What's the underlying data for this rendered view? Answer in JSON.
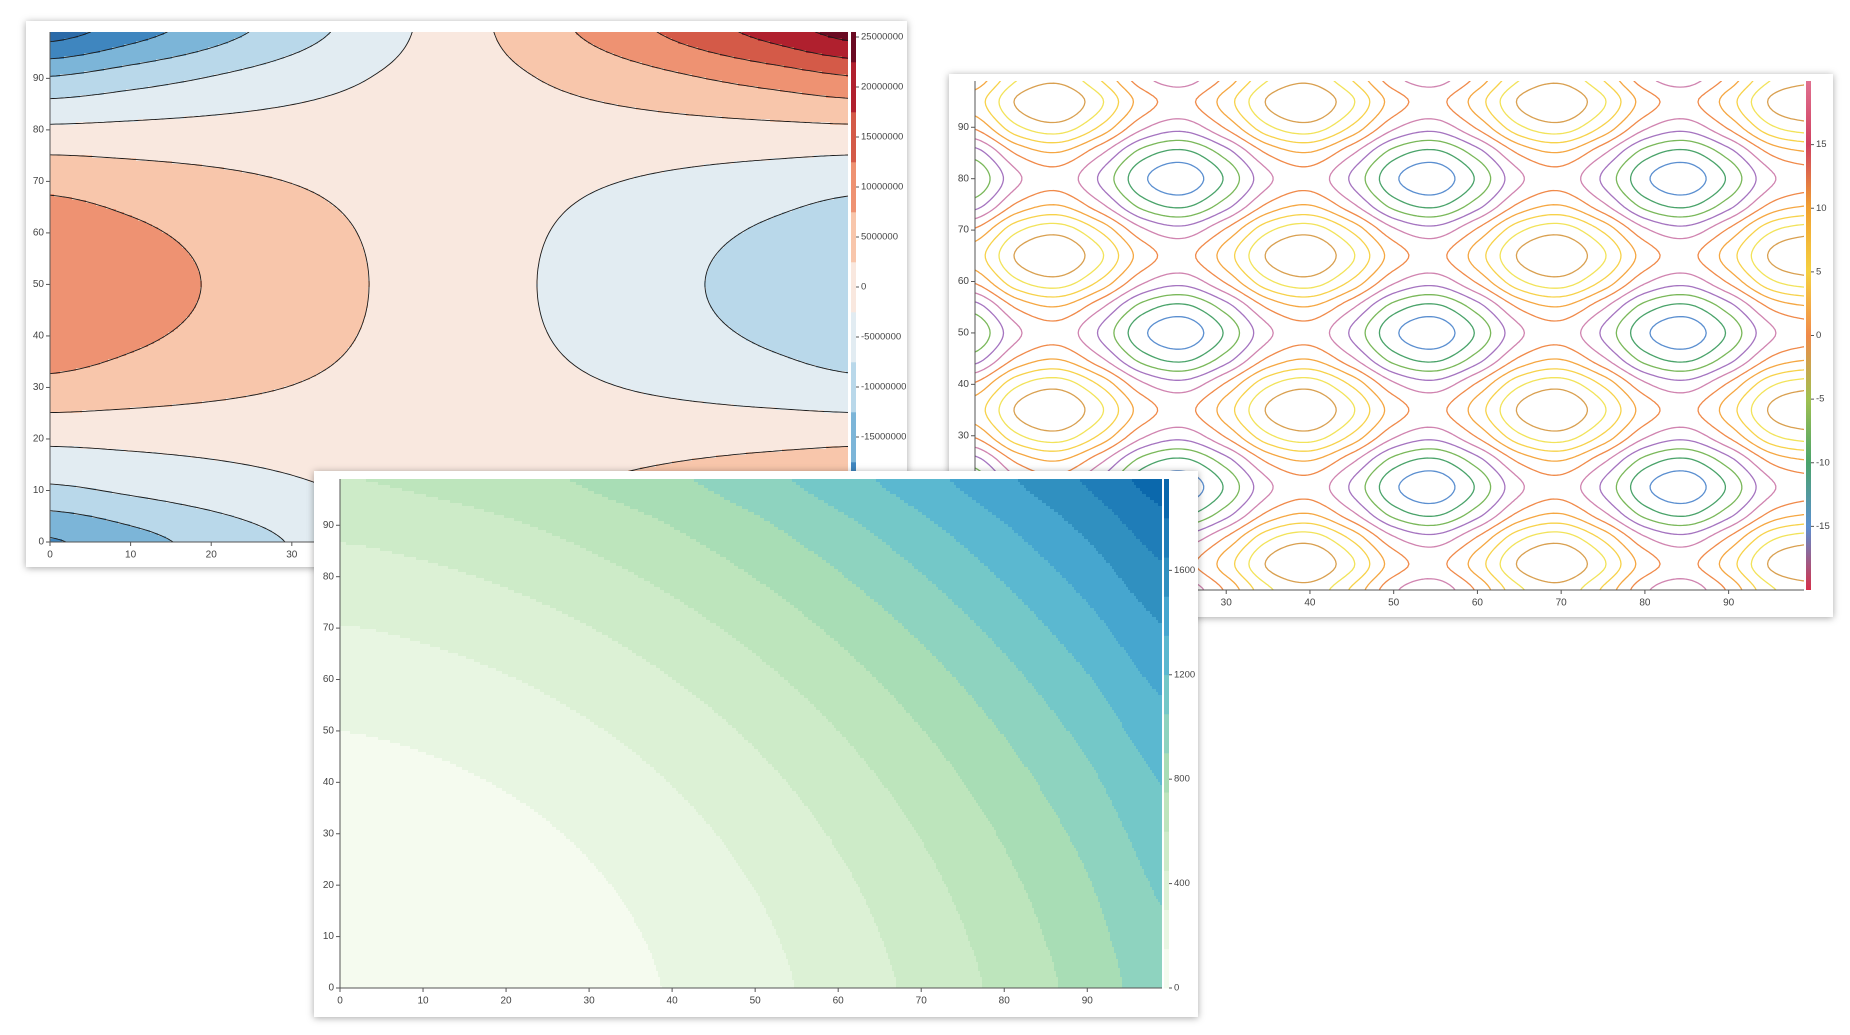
{
  "chart_data": [
    {
      "type": "filled_contour",
      "xlim": [
        0,
        99
      ],
      "ylim": [
        0,
        99
      ],
      "xticks": [
        0,
        10,
        20,
        30
      ],
      "yticks": [
        0,
        10,
        20,
        30,
        40,
        50,
        60,
        70,
        80,
        90
      ],
      "zx": [
        0,
        10,
        20,
        30,
        40,
        50,
        60,
        70,
        80,
        90,
        100
      ],
      "zy": [
        0,
        10,
        20,
        30,
        40,
        50,
        60,
        70,
        80,
        90,
        100
      ],
      "z": [
        [
          -18000000,
          -14400000,
          -10800000,
          -7200000,
          -3600000,
          0,
          3600000,
          7200000,
          10800000,
          14400000,
          18000000
        ],
        [
          -8500000,
          -6800000,
          -5100000,
          -3400000,
          -1700000,
          0,
          1700000,
          3400000,
          5100000,
          6800000,
          8500000
        ],
        [
          -1500000,
          -1200000,
          -900000,
          -600000,
          -300000,
          0,
          300000,
          600000,
          900000,
          1200000,
          1500000
        ],
        [
          6000000,
          4800000,
          3600000,
          2400000,
          1200000,
          0,
          -1200000,
          -2400000,
          -3600000,
          -4800000,
          -6000000
        ],
        [
          10500000,
          8400000,
          6300000,
          4200000,
          2100000,
          0,
          -2100000,
          -4200000,
          -6300000,
          -8400000,
          -10500000
        ],
        [
          12000000,
          9600000,
          7200000,
          4800000,
          2400000,
          0,
          -2400000,
          -4800000,
          -7200000,
          -9600000,
          -12000000
        ],
        [
          10500000,
          8400000,
          6300000,
          4200000,
          2100000,
          0,
          -2100000,
          -4200000,
          -6300000,
          -8400000,
          -10500000
        ],
        [
          6000000,
          4800000,
          3600000,
          2400000,
          1200000,
          0,
          -1200000,
          -2400000,
          -3600000,
          -4800000,
          -6000000
        ],
        [
          -1500000,
          -1200000,
          -900000,
          -600000,
          -300000,
          0,
          300000,
          600000,
          900000,
          1200000,
          1500000
        ],
        [
          -12000000,
          -9600000,
          -7200000,
          -4800000,
          -2400000,
          0,
          2400000,
          4800000,
          7200000,
          9600000,
          12000000
        ],
        [
          -25500000,
          -20400000,
          -15300000,
          -10200000,
          -5100000,
          0,
          5100000,
          10200000,
          15300000,
          20400000,
          25500000
        ]
      ],
      "levels": [
        -27500000,
        -22500000,
        -17500000,
        -12500000,
        -7500000,
        -2500000,
        2500000,
        7500000,
        12500000,
        17500000,
        22500000,
        27500000
      ],
      "colors": [
        "#2b6aa8",
        "#3f86bf",
        "#7cb5d8",
        "#b9d8ea",
        "#e2ecf2",
        "#f9e8df",
        "#f8c6ab",
        "#ee9272",
        "#d45a48",
        "#b0202e",
        "#6a0a22"
      ],
      "line_color": "#1a1a1a",
      "zlim": [
        -25500000,
        25500000
      ],
      "zticks": [
        25000000,
        20000000,
        15000000,
        10000000,
        5000000,
        0,
        -5000000,
        -10000000,
        -15000000
      ]
    },
    {
      "type": "contour",
      "xlim": [
        0,
        99
      ],
      "ylim": [
        0,
        99
      ],
      "xticks": [
        30,
        40,
        50,
        60,
        70,
        80,
        90
      ],
      "yticks": [
        30,
        40,
        50,
        60,
        70,
        80,
        90
      ],
      "zx": [
        0,
        5,
        10,
        15,
        20,
        25,
        30,
        35,
        40,
        45,
        50,
        55,
        60,
        65,
        70,
        75,
        80,
        85,
        90,
        95,
        100
      ],
      "zy": [
        0,
        5,
        10,
        15,
        20,
        25,
        30,
        35,
        40,
        45,
        50,
        55,
        60,
        65,
        70,
        75,
        80,
        85,
        90,
        95,
        100
      ],
      "z": [
        [
          1.5,
          9.4,
          11.8,
          6.5,
          -1.4,
          -3.8,
          1.5,
          9.4,
          11.8,
          6.5,
          -1.4,
          -3.8,
          1.5,
          9.4,
          11.8,
          6.5,
          -1.4,
          -3.8,
          1.5,
          9.4,
          11.8
        ],
        [
          5.5,
          13.4,
          15.8,
          10.5,
          2.6,
          0.2,
          5.5,
          13.4,
          15.8,
          10.5,
          2.6,
          0.2,
          5.5,
          13.4,
          15.8,
          10.5,
          2.6,
          0.2,
          5.5,
          13.4,
          15.8
        ],
        [
          1.5,
          9.4,
          11.8,
          6.5,
          -1.4,
          -3.8,
          1.5,
          9.4,
          11.8,
          6.5,
          -1.4,
          -3.8,
          1.5,
          9.4,
          11.8,
          6.5,
          -1.4,
          -3.8,
          1.5,
          9.4,
          11.8
        ],
        [
          -6.5,
          1.4,
          3.8,
          -1.5,
          -9.4,
          -11.8,
          -6.5,
          1.4,
          3.8,
          -1.5,
          -9.4,
          -11.8,
          -6.5,
          1.4,
          3.8,
          -1.5,
          -9.4,
          -11.8,
          -6.5,
          1.4,
          3.8
        ],
        [
          -10.5,
          -2.6,
          -0.2,
          -5.5,
          -13.4,
          -15.8,
          -10.5,
          -2.6,
          -0.2,
          -5.5,
          -13.4,
          -15.8,
          -10.5,
          -2.6,
          -0.2,
          -5.5,
          -13.4,
          -15.8,
          -10.5,
          -2.6,
          -0.2
        ],
        [
          -6.5,
          1.4,
          3.8,
          -1.5,
          -9.4,
          -11.8,
          -6.5,
          1.4,
          3.8,
          -1.5,
          -9.4,
          -11.8,
          -6.5,
          1.4,
          3.8,
          -1.5,
          -9.4,
          -11.8,
          -6.5,
          1.4,
          3.8
        ],
        [
          1.5,
          9.4,
          11.8,
          6.5,
          -1.4,
          -3.8,
          1.5,
          9.4,
          11.8,
          6.5,
          -1.4,
          -3.8,
          1.5,
          9.4,
          11.8,
          6.5,
          -1.4,
          -3.8,
          1.5,
          9.4,
          11.8
        ],
        [
          5.5,
          13.4,
          15.8,
          10.5,
          2.6,
          0.2,
          5.5,
          13.4,
          15.8,
          10.5,
          2.6,
          0.2,
          5.5,
          13.4,
          15.8,
          10.5,
          2.6,
          0.2,
          5.5,
          13.4,
          15.8
        ],
        [
          1.5,
          9.4,
          11.8,
          6.5,
          -1.4,
          -3.8,
          1.5,
          9.4,
          11.8,
          6.5,
          -1.4,
          -3.8,
          1.5,
          9.4,
          11.8,
          6.5,
          -1.4,
          -3.8,
          1.5,
          9.4,
          11.8
        ],
        [
          -6.5,
          1.4,
          3.8,
          -1.5,
          -9.4,
          -11.8,
          -6.5,
          1.4,
          3.8,
          -1.5,
          -9.4,
          -11.8,
          -6.5,
          1.4,
          3.8,
          -1.5,
          -9.4,
          -11.8,
          -6.5,
          1.4,
          3.8
        ],
        [
          -10.5,
          -2.6,
          -0.2,
          -5.5,
          -13.4,
          -15.8,
          -10.5,
          -2.6,
          -0.2,
          -5.5,
          -13.4,
          -15.8,
          -10.5,
          -2.6,
          -0.2,
          -5.5,
          -13.4,
          -15.8,
          -10.5,
          -2.6,
          -0.2
        ],
        [
          -6.5,
          1.4,
          3.8,
          -1.5,
          -9.4,
          -11.8,
          -6.5,
          1.4,
          3.8,
          -1.5,
          -9.4,
          -11.8,
          -6.5,
          1.4,
          3.8,
          -1.5,
          -9.4,
          -11.8,
          -6.5,
          1.4,
          3.8
        ],
        [
          1.5,
          9.4,
          11.8,
          6.5,
          -1.4,
          -3.8,
          1.5,
          9.4,
          11.8,
          6.5,
          -1.4,
          -3.8,
          1.5,
          9.4,
          11.8,
          6.5,
          -1.4,
          -3.8,
          1.5,
          9.4,
          11.8
        ],
        [
          5.5,
          13.4,
          15.8,
          10.5,
          2.6,
          0.2,
          5.5,
          13.4,
          15.8,
          10.5,
          2.6,
          0.2,
          5.5,
          13.4,
          15.8,
          10.5,
          2.6,
          0.2,
          5.5,
          13.4,
          15.8
        ],
        [
          1.5,
          9.4,
          11.8,
          6.5,
          -1.4,
          -3.8,
          1.5,
          9.4,
          11.8,
          6.5,
          -1.4,
          -3.8,
          1.5,
          9.4,
          11.8,
          6.5,
          -1.4,
          -3.8,
          1.5,
          9.4,
          11.8
        ],
        [
          -6.5,
          1.4,
          3.8,
          -1.5,
          -9.4,
          -11.8,
          -6.5,
          1.4,
          3.8,
          -1.5,
          -9.4,
          -11.8,
          -6.5,
          1.4,
          3.8,
          -1.5,
          -9.4,
          -11.8,
          -6.5,
          1.4,
          3.8
        ],
        [
          -10.5,
          -2.6,
          -0.2,
          -5.5,
          -13.4,
          -15.8,
          -10.5,
          -2.6,
          -0.2,
          -5.5,
          -13.4,
          -15.8,
          -10.5,
          -2.6,
          -0.2,
          -5.5,
          -13.4,
          -15.8,
          -10.5,
          -2.6,
          -0.2
        ],
        [
          -6.5,
          1.4,
          3.8,
          -1.5,
          -9.4,
          -11.8,
          -6.5,
          1.4,
          3.8,
          -1.5,
          -9.4,
          -11.8,
          -6.5,
          1.4,
          3.8,
          -1.5,
          -9.4,
          -11.8,
          -6.5,
          1.4,
          3.8
        ],
        [
          1.5,
          9.4,
          11.8,
          6.5,
          -1.4,
          -3.8,
          1.5,
          9.4,
          11.8,
          6.5,
          -1.4,
          -3.8,
          1.5,
          9.4,
          11.8,
          6.5,
          -1.4,
          -3.8,
          1.5,
          9.4,
          11.8
        ],
        [
          5.5,
          13.4,
          15.8,
          10.5,
          2.6,
          0.2,
          5.5,
          13.4,
          15.8,
          10.5,
          2.6,
          0.2,
          5.5,
          13.4,
          15.8,
          10.5,
          2.6,
          0.2,
          5.5,
          13.4,
          15.8
        ],
        [
          1.5,
          9.4,
          11.8,
          6.5,
          -1.4,
          -3.8,
          1.5,
          9.4,
          11.8,
          6.5,
          -1.4,
          -3.8,
          1.5,
          9.4,
          11.8,
          6.5,
          -1.4,
          -3.8,
          1.5,
          9.4,
          11.8
        ]
      ],
      "levels": [
        -14,
        -11,
        -8,
        -5,
        -2,
        1,
        4,
        7,
        10,
        13
      ],
      "colors": [
        "#5b8fd0",
        "#4aa36a",
        "#7ab85a",
        "#a574c0",
        "#d084b0",
        "#f08a4a",
        "#f5a742",
        "#f7d24a",
        "#f2e35a",
        "#d9a050"
      ],
      "colorbar_colors": [
        "#d6304a",
        "#5b8fd0",
        "#4aa36a",
        "#a0c050",
        "#f08a4a",
        "#f5d040",
        "#f0a030",
        "#d04060",
        "#e07090"
      ],
      "zlim": [
        -20,
        20
      ],
      "zticks": [
        15,
        10,
        5,
        0,
        -5,
        -10,
        -15
      ]
    },
    {
      "type": "filled_contour",
      "xlim": [
        0,
        99
      ],
      "ylim": [
        0,
        99
      ],
      "xticks": [
        0,
        10,
        20,
        30,
        40,
        50,
        60,
        70,
        80,
        90
      ],
      "yticks": [
        0,
        10,
        20,
        30,
        40,
        50,
        60,
        70,
        80,
        90
      ],
      "zx": [
        0,
        10,
        20,
        30,
        40,
        50,
        60,
        70,
        80,
        90,
        100
      ],
      "zy": [
        0,
        10,
        20,
        30,
        40,
        50,
        60,
        70,
        80,
        90,
        100
      ],
      "z": [
        [
          0,
          10,
          40,
          90,
          160,
          250,
          360,
          490,
          640,
          810,
          1000
        ],
        [
          6,
          19,
          52,
          105,
          178,
          271,
          384,
          517,
          670,
          843,
          1036
        ],
        [
          24,
          40,
          76,
          132,
          208,
          304,
          420,
          556,
          712,
          888,
          1084
        ],
        [
          54,
          73,
          112,
          171,
          250,
          349,
          468,
          607,
          766,
          945,
          1144
        ],
        [
          96,
          118,
          160,
          222,
          304,
          406,
          528,
          670,
          832,
          1014,
          1216
        ],
        [
          150,
          175,
          220,
          285,
          370,
          475,
          600,
          745,
          910,
          1095,
          1300
        ],
        [
          216,
          244,
          292,
          360,
          448,
          556,
          684,
          832,
          1000,
          1188,
          1396
        ],
        [
          294,
          325,
          376,
          447,
          538,
          649,
          780,
          931,
          1102,
          1293,
          1504
        ],
        [
          384,
          418,
          472,
          546,
          640,
          754,
          888,
          1042,
          1216,
          1410,
          1624
        ],
        [
          486,
          523,
          580,
          657,
          754,
          871,
          1008,
          1165,
          1342,
          1539,
          1756
        ],
        [
          600,
          640,
          700,
          780,
          880,
          1000,
          1140,
          1300,
          1480,
          1680,
          1900
        ]
      ],
      "levels": [
        0,
        150,
        300,
        450,
        600,
        750,
        900,
        1050,
        1200,
        1350,
        1500,
        1650,
        1800,
        1950
      ],
      "colors": [
        "#f5fbef",
        "#e8f6e2",
        "#dcf1d5",
        "#cdebc8",
        "#bde5bc",
        "#a8ddb5",
        "#8ed3bf",
        "#74c8c8",
        "#5bb8d0",
        "#46a6cf",
        "#3090c0",
        "#1f7db8",
        "#0b68ac"
      ],
      "zlim": [
        0,
        1950
      ],
      "zticks": [
        0,
        400,
        800,
        1200,
        1600
      ]
    }
  ]
}
